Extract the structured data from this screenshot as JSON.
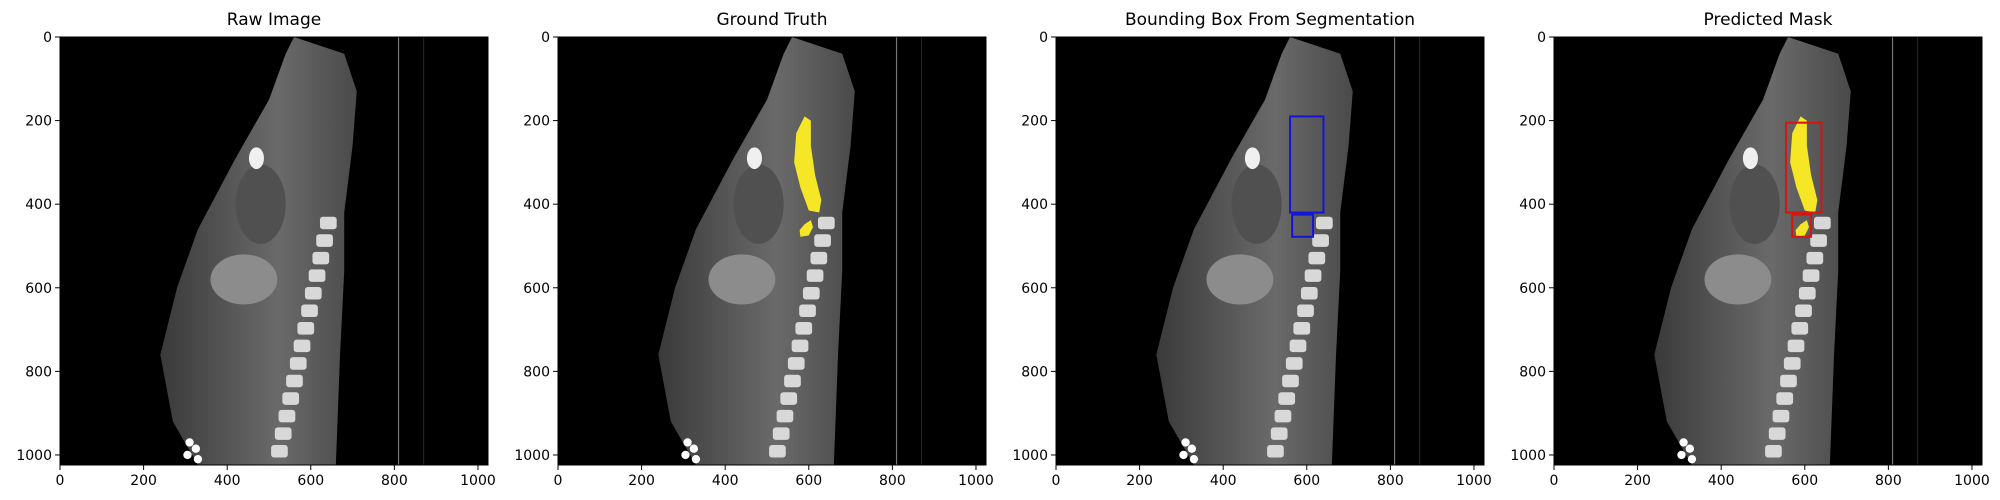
{
  "panels": [
    {
      "title": "Raw Image",
      "boxes": [],
      "mask": false
    },
    {
      "title": "Ground Truth",
      "boxes": [],
      "mask": true
    },
    {
      "title": "Bounding Box From Segmentation",
      "boxes": [
        {
          "x0": 560,
          "y0": 190,
          "x1": 640,
          "y1": 420,
          "color": "#1414d6"
        },
        {
          "x0": 565,
          "y0": 425,
          "x1": 615,
          "y1": 478,
          "color": "#1414d6"
        }
      ],
      "mask": false
    },
    {
      "title": "Predicted Mask",
      "boxes": [
        {
          "x0": 555,
          "y0": 205,
          "x1": 640,
          "y1": 420,
          "color": "#d61414"
        },
        {
          "x0": 570,
          "y0": 425,
          "x1": 615,
          "y1": 478,
          "color": "#d61414"
        }
      ],
      "mask": true
    }
  ],
  "axes": {
    "x_ticks": [
      "0",
      "200",
      "400",
      "600",
      "800",
      "1000"
    ],
    "y_ticks": [
      "0",
      "200",
      "400",
      "600",
      "800",
      "1000"
    ]
  },
  "colors": {
    "mask": "#f5e626",
    "background": "#000000"
  }
}
